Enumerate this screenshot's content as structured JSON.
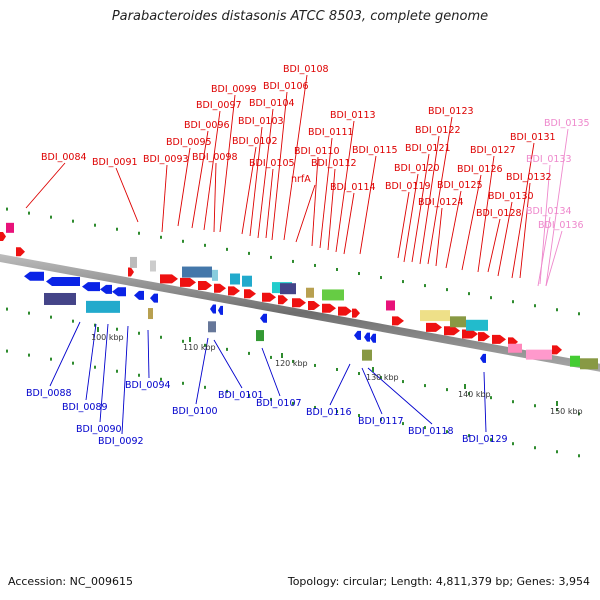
{
  "title": "Parabacteroides distasonis ATCC 8503, complete genome",
  "accession": "Accession: NC_009615",
  "topology": "Topology: circular; Length: 4,811,379 bp; Genes: 3,954",
  "colors": {
    "forward_label": "#dd0000",
    "reverse_label": "#0000cc",
    "pseudo_label": "#ee88cc",
    "backbone": "#808080"
  },
  "scale_labels": [
    "100 kbp",
    "110 kbp",
    "120 kbp",
    "130 kbp",
    "140 kbp",
    "150 kbp"
  ],
  "gene_labels": {
    "forward": [
      "BDI_0084",
      "BDI_0091",
      "BDI_0093",
      "BDI_0095",
      "BDI_0096",
      "BDI_0097",
      "BDI_0098",
      "BDI_0099",
      "BDI_0102",
      "BDI_0103",
      "BDI_0104",
      "BDI_0105",
      "BDI_0106",
      "BDI_0108",
      "nrfA",
      "BDI_0110",
      "BDI_0111",
      "BDI_0112",
      "BDI_0113",
      "BDI_0114",
      "BDI_0115",
      "BDI_0119",
      "BDI_0120",
      "BDI_0121",
      "BDI_0122",
      "BDI_0123",
      "BDI_0124",
      "BDI_0125",
      "BDI_0126",
      "BDI_0127",
      "BDI_0128",
      "BDI_0130",
      "BDI_0131",
      "BDI_0132"
    ],
    "pseudo": [
      "BDI_0133",
      "BDI_0134",
      "BDI_0135",
      "BDI_0136"
    ],
    "reverse": [
      "BDI_0088",
      "BDI_0089",
      "BDI_0090",
      "BDI_0092",
      "BDI_0094",
      "BDI_0100",
      "BDI_0101",
      "BDI_0107",
      "BDI_0116",
      "BDI_0117",
      "BDI_0118",
      "BDI_0129"
    ]
  }
}
